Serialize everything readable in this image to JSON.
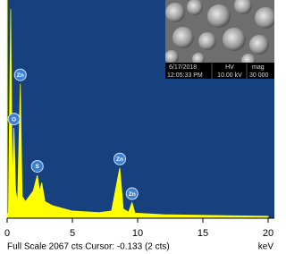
{
  "chart_data": {
    "type": "area",
    "x": [
      0.0,
      0.1,
      0.27,
      0.4,
      0.52,
      0.65,
      0.8,
      1.01,
      1.15,
      1.4,
      2.0,
      2.31,
      2.5,
      2.65,
      2.9,
      3.5,
      5.0,
      7.0,
      8.0,
      8.63,
      8.9,
      9.3,
      9.57,
      9.8,
      12.0,
      20.0
    ],
    "values": [
      0,
      50,
      1980,
      300,
      850,
      250,
      150,
      1270,
      200,
      150,
      250,
      400,
      250,
      330,
      150,
      110,
      60,
      45,
      60,
      470,
      80,
      50,
      140,
      40,
      25,
      10
    ],
    "color": "#ffff00",
    "background": "#17417e",
    "xlim": [
      0,
      20
    ],
    "xticks": [
      0,
      5,
      10,
      15,
      20
    ],
    "ylim": [
      0,
      2067
    ],
    "peak_labels": [
      {
        "text": "Zn",
        "x": 1.01,
        "y": 1270
      },
      {
        "text": "O",
        "x": 0.52,
        "y": 850
      },
      {
        "text": "S",
        "x": 2.31,
        "y": 400
      },
      {
        "text": "Zn",
        "x": 8.63,
        "y": 470
      },
      {
        "text": "Zn",
        "x": 9.57,
        "y": 140
      }
    ],
    "status": "Full Scale 2067 cts Cursor: -0.133 (2 cts)",
    "x_unit": "keV"
  },
  "inset": {
    "date": "6/17/2018",
    "time": "12:05:33 PM",
    "hv_label": "HV",
    "hv": "10.00 kV",
    "mag_label": "mag",
    "mag": "30 000"
  }
}
